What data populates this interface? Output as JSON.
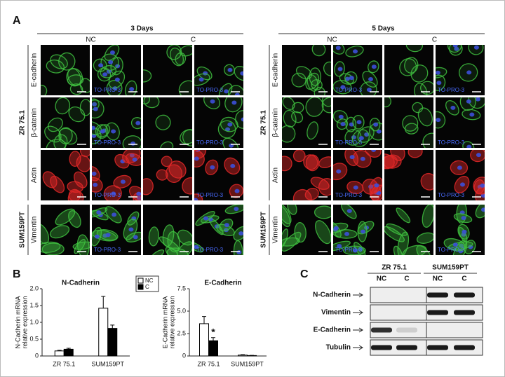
{
  "panel_a": {
    "label": "A",
    "groups": [
      {
        "title": "3 Days"
      },
      {
        "title": "5 Days"
      }
    ],
    "conditions": [
      "NC",
      "C"
    ],
    "markers": [
      "E-cadherin",
      "β-catenin",
      "Actin",
      "Vimentin"
    ],
    "cell_lines": [
      "ZR 75.1",
      "SUM159PT"
    ],
    "stain": "TO-PRO-3"
  },
  "panel_b": {
    "label": "B"
  },
  "chart_data": [
    {
      "type": "bar",
      "title": "N-Cadherin",
      "y_label": [
        "N-Cadherin mRNA",
        "relative expression"
      ],
      "categories": [
        "ZR 75.1",
        "SUM159PT"
      ],
      "series": [
        {
          "name": "NC",
          "color": "#ffffff",
          "values": [
            0.15,
            1.42
          ],
          "errors": [
            0.02,
            0.35
          ]
        },
        {
          "name": "C",
          "color": "#000000",
          "values": [
            0.2,
            0.82
          ],
          "errors": [
            0.03,
            0.1
          ]
        }
      ],
      "ylim": [
        0,
        2
      ],
      "yticks": [
        0,
        0.5,
        {
          "value": 1,
          "label": "1.0"
        },
        1.5,
        {
          "value": 2,
          "label": "2.0"
        }
      ]
    },
    {
      "type": "bar",
      "title": "E-Cadherin",
      "y_label": [
        "E-Cadherin mRNA",
        "relative expression"
      ],
      "categories": [
        "ZR 75.1",
        "SUM159PT"
      ],
      "annotation": "*",
      "series": [
        {
          "name": "NC",
          "color": "#ffffff",
          "values": [
            3.6,
            0.1
          ],
          "errors": [
            0.8,
            0.05
          ]
        },
        {
          "name": "C",
          "color": "#000000",
          "values": [
            1.7,
            0.05
          ],
          "errors": [
            0.35,
            0.02
          ]
        }
      ],
      "ylim": [
        0,
        7.5
      ],
      "yticks": [
        0,
        2.5,
        {
          "value": 5,
          "label": "5.0"
        },
        7.5
      ]
    }
  ],
  "panel_c": {
    "label": "C",
    "cell_lines": [
      "ZR 75.1",
      "SUM159PT"
    ],
    "conditions": [
      "NC",
      "C"
    ],
    "proteins": [
      "N-Cadherin",
      "Vimentin",
      "E-Cadherin",
      "Tubulin"
    ]
  }
}
